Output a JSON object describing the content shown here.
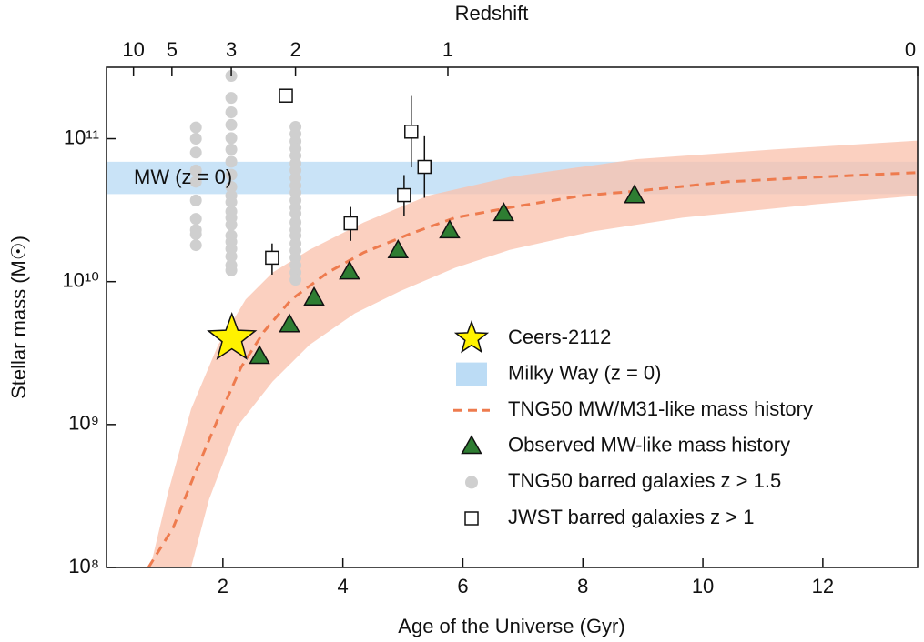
{
  "chart_data": {
    "type": "scatter",
    "x_label": "Age of the Universe (Gyr)",
    "y_label": "Stellar mass (M☉)",
    "top_label": "Redshift",
    "annotation": "MW (z = 0)",
    "log_y": true,
    "legend": "right",
    "xlim": [
      0.06,
      13.58
    ],
    "ylim": [
      100000000.0,
      316000000000.0
    ],
    "xticks": [
      2,
      4,
      6,
      8,
      10,
      12
    ],
    "yticks": [
      {
        "value": 100000000.0,
        "label": "10⁸"
      },
      {
        "value": 1000000000.0,
        "label": "10⁹"
      },
      {
        "value": 10000000000.0,
        "label": "10¹⁰"
      },
      {
        "value": 100000000000.0,
        "label": "10¹¹"
      }
    ],
    "top_ticks": [
      {
        "value": 0.51,
        "label": "10"
      },
      {
        "value": 1.15,
        "label": "5"
      },
      {
        "value": 2.14,
        "label": "3"
      },
      {
        "value": 3.21,
        "label": "2"
      },
      {
        "value": 5.75,
        "label": "1"
      },
      {
        "value": 13.58,
        "label": "0"
      }
    ],
    "series": [
      {
        "name": "Ceers-2112",
        "type": "star",
        "color": "#fff200",
        "x": [
          2.15
        ],
        "values": [
          4000000000.0
        ]
      },
      {
        "name": "Milky Way (z = 0)",
        "type": "hband",
        "color": "#bcdcf5",
        "values": [
          41000000000.0,
          69000000000.0
        ]
      },
      {
        "name": "TNG50 MW/M31-like mass history",
        "type": "dashed",
        "color": "#ee7b4e",
        "x": [
          0.76,
          1.17,
          1.54,
          1.92,
          2.3,
          2.68,
          3.14,
          3.75,
          4.35,
          5.11,
          5.87,
          6.78,
          7.99,
          8.9,
          10.42,
          11.94,
          13.58
        ],
        "values": [
          100000000.0,
          190000000.0,
          460000000.0,
          1100000000.0,
          2500000000.0,
          4450000000.0,
          7500000000.0,
          11600000000.0,
          16000000000.0,
          21500000000.0,
          28000000000.0,
          33000000000.0,
          40000000000.0,
          43000000000.0,
          50000000000.0,
          54000000000.0,
          58000000000.0
        ],
        "band": {
          "color": "#f9c0ab",
          "x_upper": [
            0.79,
            1.09,
            1.47,
            1.92,
            2.38,
            2.83,
            3.44,
            4.35,
            5.42,
            6.78,
            8.9,
            11.18,
            13.58
          ],
          "upper": [
            100000000.0,
            340000000.0,
            1280000000.0,
            3600000000.0,
            7500000000.0,
            11600000000.0,
            16700000000.0,
            26000000000.0,
            40000000000.0,
            54000000000.0,
            72000000000.0,
            84000000000.0,
            97000000000.0
          ],
          "x_lower": [
            1.47,
            1.77,
            2.23,
            2.83,
            3.44,
            4.2,
            4.96,
            5.87,
            6.78,
            8.15,
            9.66,
            11.94,
            13.58
          ],
          "lower": [
            100000000.0,
            300000000.0,
            960000000.0,
            2000000000.0,
            3600000000.0,
            6000000000.0,
            8600000000.0,
            12500000000.0,
            16700000000.0,
            22400000000.0,
            28000000000.0,
            35000000000.0,
            40000000000.0
          ]
        }
      },
      {
        "name": "Observed MW-like mass history",
        "type": "triangle",
        "color": "#2e7d32",
        "x": [
          2.61,
          3.11,
          3.52,
          4.11,
          4.92,
          5.78,
          6.68,
          8.86
        ],
        "values": [
          3000000000.0,
          5000000000.0,
          7700000000.0,
          11700000000.0,
          16500000000.0,
          22700000000.0,
          30000000000.0,
          40000000000.0
        ]
      },
      {
        "name": "TNG50 barred galaxies z > 1.5",
        "type": "dot",
        "color": "#cfcfcf",
        "x": [
          1.55,
          1.55,
          1.55,
          1.55,
          1.55,
          1.55,
          1.55,
          1.55,
          1.55,
          1.55,
          2.14,
          2.14,
          2.14,
          2.14,
          2.14,
          2.14,
          2.14,
          2.14,
          2.14,
          2.14,
          2.14,
          2.14,
          2.14,
          2.14,
          2.14,
          2.14,
          2.14,
          2.14,
          2.14,
          2.14,
          3.21,
          3.21,
          3.21,
          3.21,
          3.21,
          3.21,
          3.21,
          3.21,
          3.21,
          3.21,
          3.21,
          3.21,
          3.21,
          3.21,
          3.21,
          3.21,
          3.21,
          3.21,
          3.21,
          3.21,
          3.21,
          3.21
        ],
        "values": [
          120000000000.0,
          100000000000.0,
          80000000000.0,
          60000000000.0,
          50000000000.0,
          37000000000.0,
          27500000000.0,
          23000000000.0,
          21500000000.0,
          18000000000.0,
          275000000000.0,
          193000000000.0,
          153000000000.0,
          125000000000.0,
          101000000000.0,
          84000000000.0,
          69000000000.0,
          56000000000.0,
          46000000000.0,
          40000000000.0,
          36000000000.0,
          31000000000.0,
          28000000000.0,
          25000000000.0,
          21000000000.0,
          19000000000.0,
          17000000000.0,
          15000000000.0,
          13000000000.0,
          12000000000.0,
          121000000000.0,
          108000000000.0,
          96000000000.0,
          85000000000.0,
          76000000000.0,
          67000000000.0,
          60000000000.0,
          53000000000.0,
          47000000000.0,
          42000000000.0,
          37000000000.0,
          33000000000.0,
          30000000000.0,
          26000000000.0,
          23000000000.0,
          21000000000.0,
          18500000000.0,
          16500000000.0,
          14700000000.0,
          13000000000.0,
          11600000000.0,
          10300000000.0
        ]
      },
      {
        "name": "JWST barred galaxies z > 1",
        "type": "square",
        "color": "#ffffff",
        "x": [
          3.05,
          2.82,
          4.13,
          5.02,
          5.14,
          5.36
        ],
        "values": [
          200000000000.0,
          14700000000.0,
          25600000000.0,
          40300000000.0,
          112000000000.0,
          63500000000.0
        ],
        "err_low": [
          null,
          11200000000.0,
          19300000000.0,
          28800000000.0,
          63000000000.0,
          38600000000.0
        ],
        "err_high": [
          null,
          18500000000.0,
          33300000000.0,
          55700000000.0,
          199000000000.0,
          104000000000.0
        ]
      }
    ]
  }
}
